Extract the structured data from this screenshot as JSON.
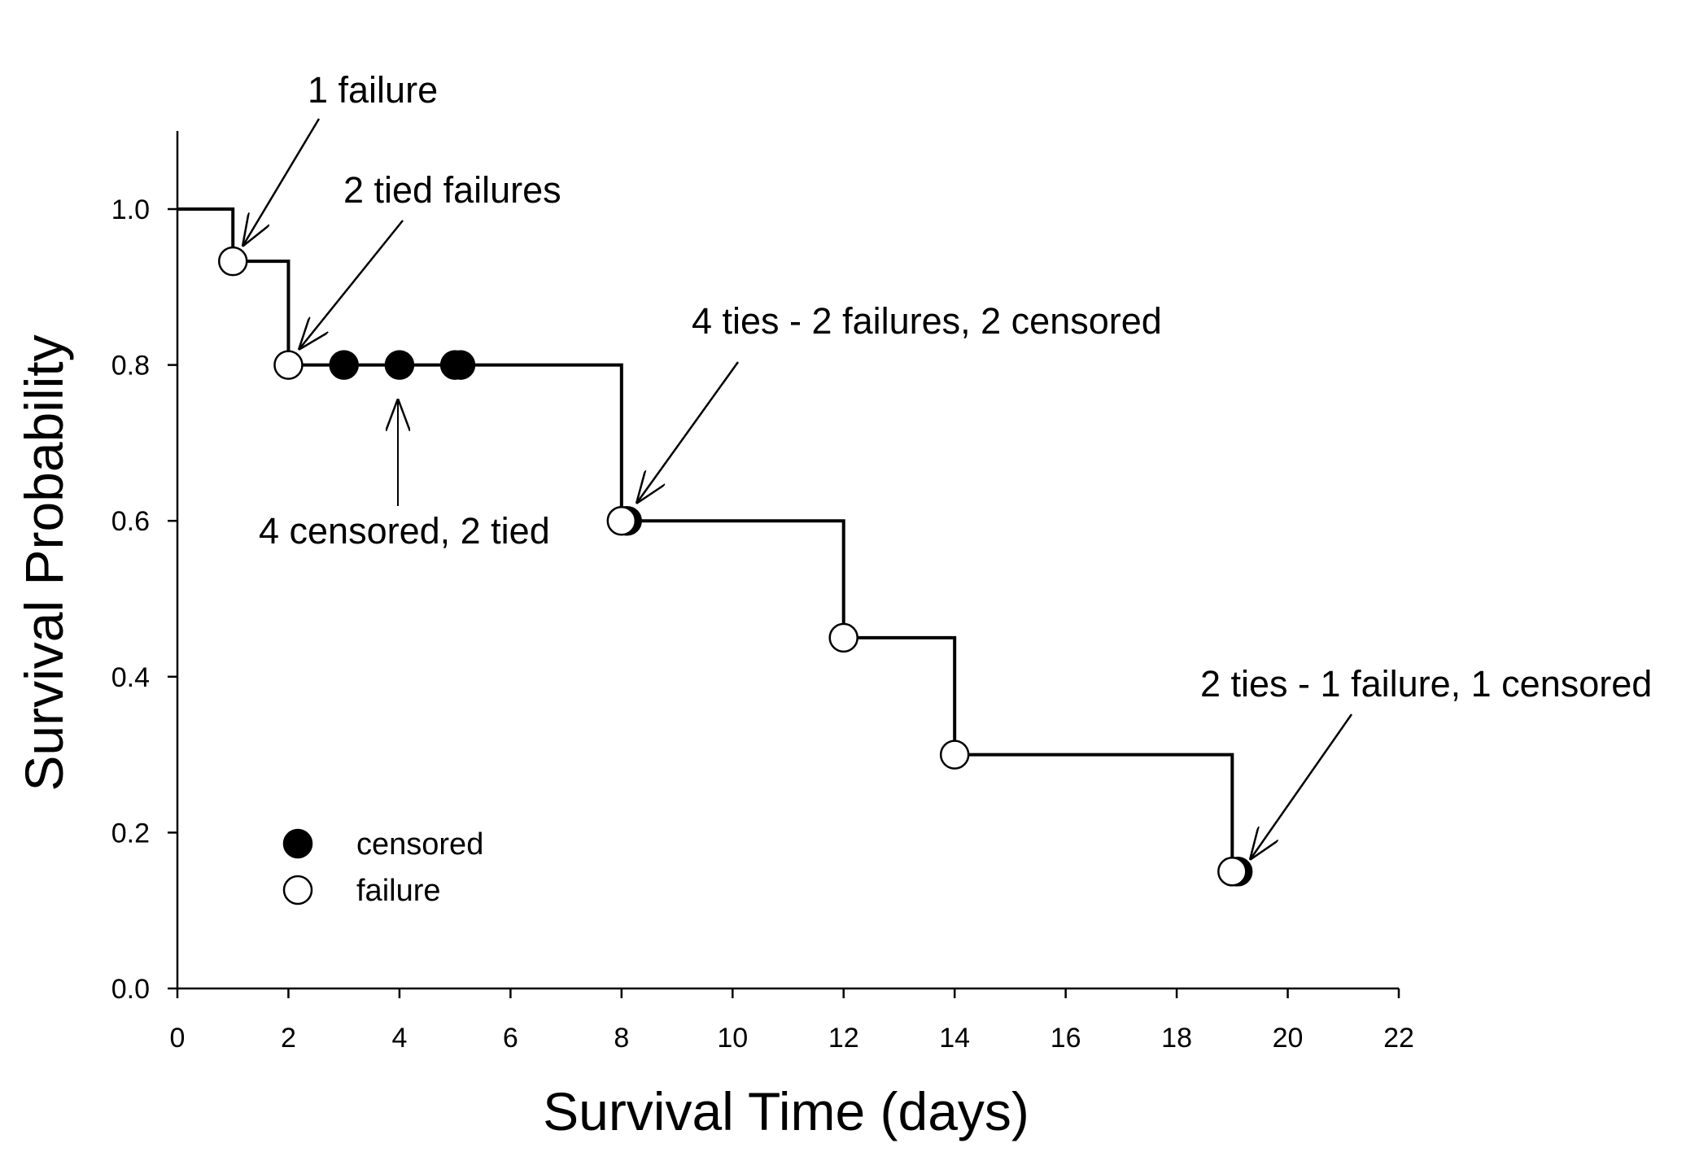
{
  "chart_data": {
    "type": "line",
    "title": "",
    "xlabel": "Survival Time (days)",
    "ylabel": "Survival Probability",
    "xlim": [
      0,
      22
    ],
    "ylim": [
      0,
      1.1
    ],
    "x_ticks": [
      "0",
      "2",
      "4",
      "6",
      "8",
      "10",
      "12",
      "14",
      "16",
      "18",
      "20",
      "22"
    ],
    "y_ticks": [
      "0.0",
      "0.2",
      "0.4",
      "0.6",
      "0.8",
      "1.0"
    ],
    "grid": false,
    "step_curve": [
      {
        "x": 0,
        "y": 1.0
      },
      {
        "x": 1,
        "y": 0.933
      },
      {
        "x": 2,
        "y": 0.8
      },
      {
        "x": 8,
        "y": 0.6
      },
      {
        "x": 12,
        "y": 0.45
      },
      {
        "x": 14,
        "y": 0.3
      },
      {
        "x": 19,
        "y": 0.15
      }
    ],
    "x_end": 19.1,
    "series": [
      {
        "name": "censored",
        "marker": "filled-circle",
        "color": "#000000",
        "points": [
          {
            "x": 3,
            "y": 0.8
          },
          {
            "x": 4,
            "y": 0.8
          },
          {
            "x": 5,
            "y": 0.8
          },
          {
            "x": 5.1,
            "y": 0.8
          },
          {
            "x": 8.1,
            "y": 0.6
          },
          {
            "x": 19.1,
            "y": 0.15
          }
        ]
      },
      {
        "name": "failure",
        "marker": "open-circle",
        "color": "#000000",
        "points": [
          {
            "x": 1,
            "y": 0.933
          },
          {
            "x": 2,
            "y": 0.8
          },
          {
            "x": 8,
            "y": 0.6
          },
          {
            "x": 12,
            "y": 0.45
          },
          {
            "x": 14,
            "y": 0.3
          },
          {
            "x": 19,
            "y": 0.15
          }
        ]
      }
    ],
    "legend": {
      "position": "bottom-left",
      "entries": [
        {
          "label": "censored",
          "marker": "filled-circle"
        },
        {
          "label": "failure",
          "marker": "open-circle"
        }
      ]
    },
    "annotations": [
      {
        "text": "1 failure",
        "x": 1,
        "y": 0.933
      },
      {
        "text": "2 tied failures",
        "x": 2,
        "y": 0.8
      },
      {
        "text": "4 censored, 2 tied",
        "x": 4,
        "y": 0.8
      },
      {
        "text": "4 ties - 2 failures, 2 censored",
        "x": 8,
        "y": 0.6
      },
      {
        "text": "2 ties - 1 failure, 1 censored",
        "x": 19,
        "y": 0.15
      }
    ]
  }
}
